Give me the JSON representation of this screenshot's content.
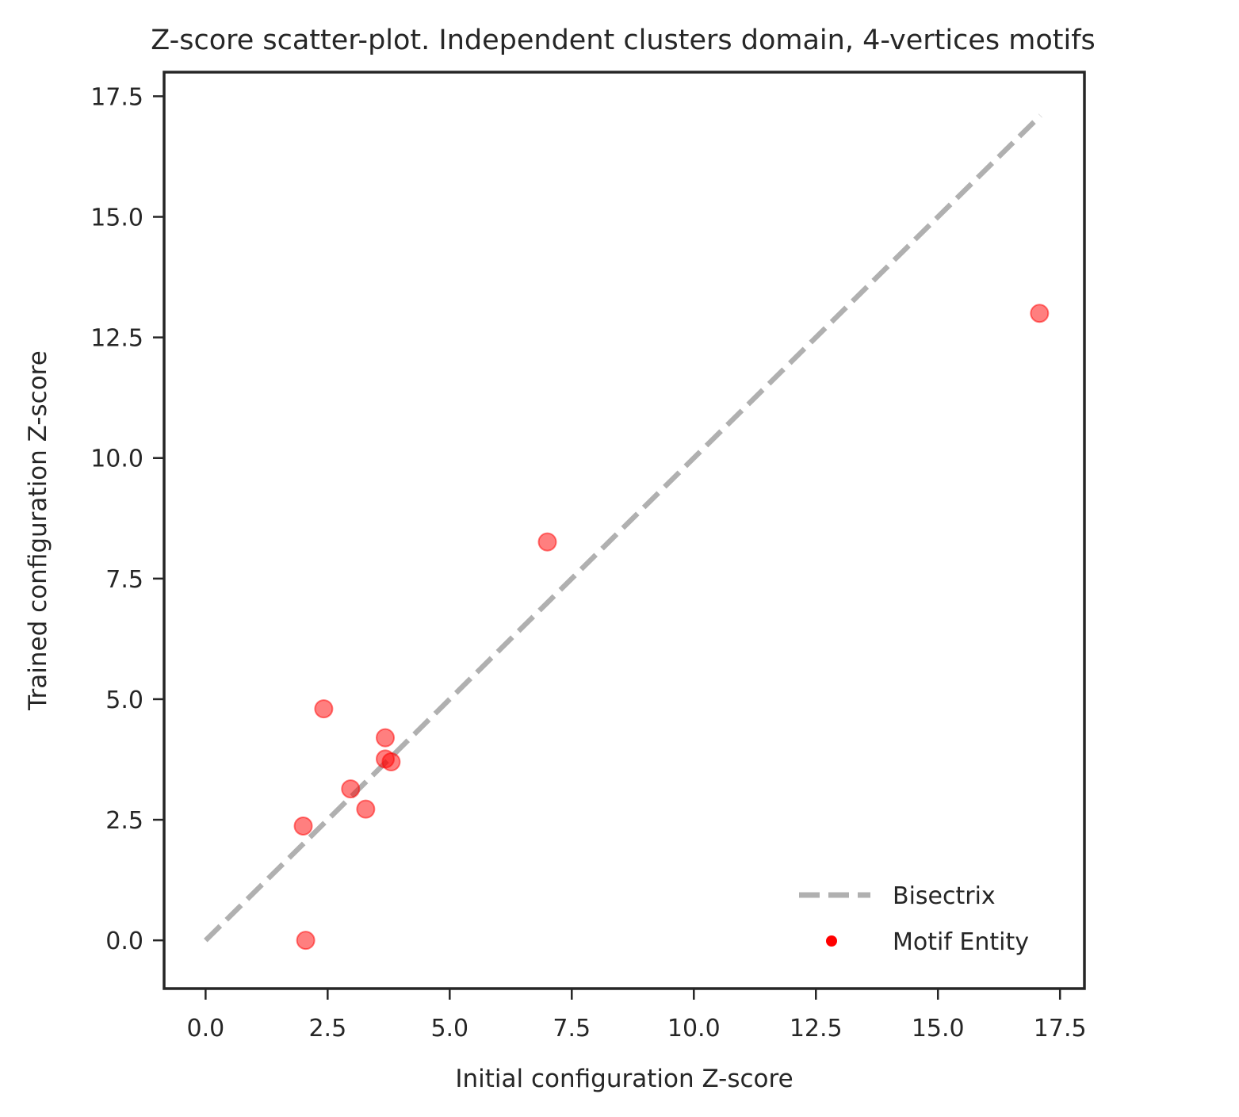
{
  "chart_data": {
    "type": "scatter",
    "title": "Z-score scatter-plot. Independent clusters domain, 4-vertices motifs",
    "xlabel": "Initial configuration Z-score",
    "ylabel": "Trained configuration Z-score",
    "xlim": [
      -0.85,
      18.0
    ],
    "ylim": [
      -1.0,
      18.0
    ],
    "x_ticks": [
      0.0,
      2.5,
      5.0,
      7.5,
      10.0,
      12.5,
      15.0,
      17.5
    ],
    "x_tick_labels": [
      "0.0",
      "2.5",
      "5.0",
      "7.5",
      "10.0",
      "12.5",
      "15.0",
      "17.5"
    ],
    "y_ticks": [
      0.0,
      2.5,
      5.0,
      7.5,
      10.0,
      12.5,
      15.0,
      17.5
    ],
    "y_tick_labels": [
      "0.0",
      "2.5",
      "5.0",
      "7.5",
      "10.0",
      "12.5",
      "15.0",
      "17.5"
    ],
    "grid": false,
    "legend_position": "lower-right",
    "series": [
      {
        "name": "Bisectrix",
        "kind": "line",
        "style": "dashed",
        "color": "#b0b0b0",
        "x": [
          0.0,
          17.1
        ],
        "y": [
          0.0,
          17.1
        ]
      },
      {
        "name": "Motif Entity",
        "kind": "scatter",
        "color": "#ff0000",
        "points": [
          {
            "x": 2.05,
            "y": 0.0
          },
          {
            "x": 2.0,
            "y": 2.37
          },
          {
            "x": 2.42,
            "y": 4.8
          },
          {
            "x": 2.97,
            "y": 3.14
          },
          {
            "x": 3.28,
            "y": 2.72
          },
          {
            "x": 3.68,
            "y": 4.2
          },
          {
            "x": 3.68,
            "y": 3.76
          },
          {
            "x": 3.8,
            "y": 3.7
          },
          {
            "x": 7.0,
            "y": 8.26
          },
          {
            "x": 17.08,
            "y": 13.0
          }
        ]
      }
    ]
  }
}
